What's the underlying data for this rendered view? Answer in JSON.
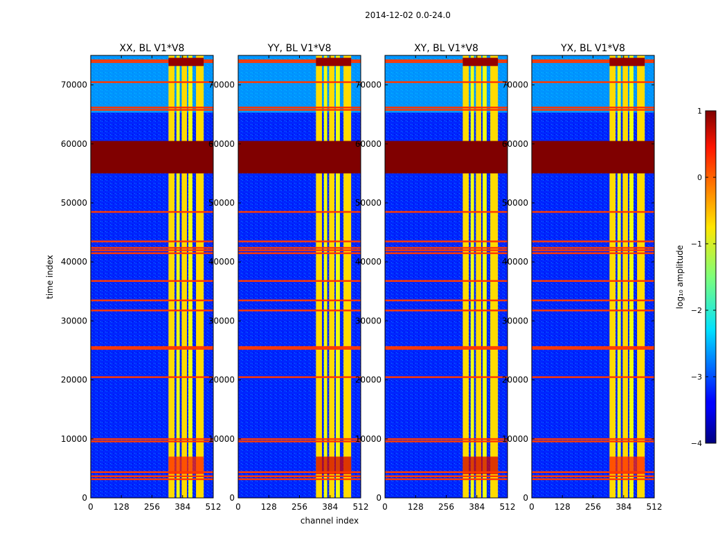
{
  "suptitle": "2014-12-02 0.0-24.0",
  "chart_data": {
    "type": "heatmap",
    "xlabel": "channel index",
    "ylabel": "time index",
    "xlim": [
      0,
      512
    ],
    "ylim": [
      0,
      75000
    ],
    "x_ticks": [
      "0",
      "128",
      "256",
      "384",
      "512"
    ],
    "x_tick_values": [
      0,
      128,
      256,
      384,
      512
    ],
    "y_ticks": [
      "0",
      "10000",
      "20000",
      "30000",
      "40000",
      "50000",
      "60000",
      "70000"
    ],
    "y_tick_values": [
      0,
      10000,
      20000,
      30000,
      40000,
      50000,
      60000,
      70000
    ],
    "colormap": "jet",
    "colorbar": {
      "label": "log₁₀ amplitude",
      "range": [
        -4,
        1
      ],
      "ticks": [
        "−4",
        "−3",
        "−2",
        "−1",
        "0",
        "1"
      ],
      "tick_values": [
        -4,
        -3,
        -2,
        -1,
        0,
        1
      ]
    },
    "panels": [
      {
        "title": "XX, BL V1*V8"
      },
      {
        "title": "YY, BL V1*V8"
      },
      {
        "title": "XY, BL V1*V8"
      },
      {
        "title": "YX, BL V1*V8"
      }
    ],
    "features": {
      "background_level": -3.2,
      "rfi_channel_bands": [
        [
          325,
          350
        ],
        [
          358,
          372
        ],
        [
          380,
          402
        ],
        [
          408,
          425
        ],
        [
          440,
          472
        ]
      ],
      "rfi_level": -0.8,
      "saturated_time_block": [
        55000,
        60500
      ],
      "saturated_level": 1.0,
      "flagged_time_rows": [
        3200,
        3700,
        4400,
        9600,
        10000,
        20500,
        25300,
        25600,
        31800,
        33500,
        36800,
        41500,
        42000,
        42400,
        43500,
        48500,
        65800,
        66200,
        70500,
        73900,
        74200
      ]
    }
  }
}
